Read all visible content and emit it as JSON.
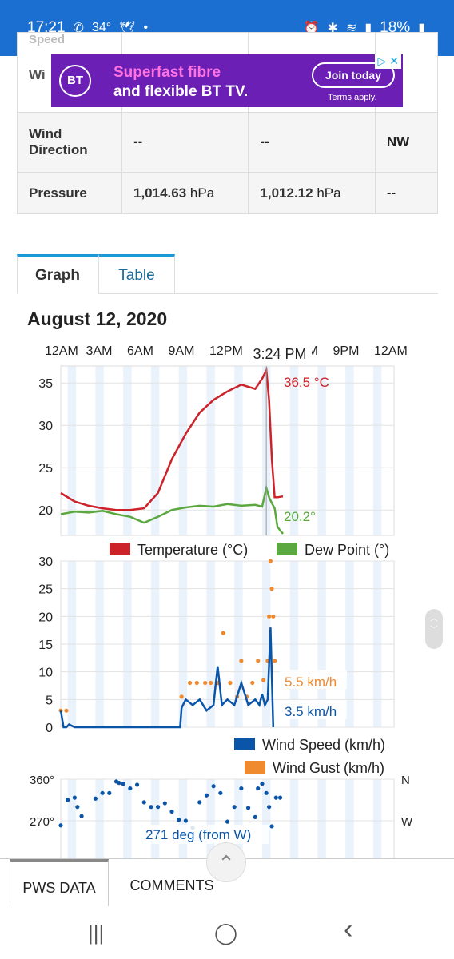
{
  "status": {
    "time": "17:21",
    "temp": "34°",
    "battery": "18%"
  },
  "ad": {
    "logo": "BT",
    "line1": "Superfast fibre",
    "line2": "and flexible BT TV.",
    "button": "Join today",
    "terms": "Terms apply."
  },
  "table": {
    "cut_label_top": "Speed",
    "cut_label": "Wi",
    "rows": [
      {
        "label": "Wind Direction",
        "v1": "--",
        "v2": "--",
        "v3": "NW"
      },
      {
        "label": "Pressure",
        "v1": "1,014.63",
        "u1": " hPa",
        "v2": "1,012.12",
        "u2": " hPa",
        "v3": "--"
      }
    ]
  },
  "tabs": {
    "graph": "Graph",
    "table": "Table"
  },
  "date": "August 12, 2020",
  "chart_data": [
    {
      "type": "line",
      "x_ticks": [
        "12AM",
        "3AM",
        "6AM",
        "9AM",
        "12PM",
        "3PM",
        "6PM",
        "9PM",
        "12AM"
      ],
      "tooltip_time": "3:24 PM",
      "yticks": [
        20,
        25,
        30,
        35
      ],
      "ylim": [
        17,
        37
      ],
      "series": [
        {
          "name": "Temperature (°C)",
          "color": "#cc2229",
          "label": "36.5 °C",
          "x": [
            0,
            1,
            2,
            3,
            4,
            5,
            6,
            7,
            8,
            9,
            10,
            11,
            12,
            13,
            14,
            14.5,
            14.8,
            15,
            15.2,
            15.4,
            15.6,
            16.0
          ],
          "y": [
            22,
            21,
            20.5,
            20.2,
            20,
            20,
            20.2,
            22,
            26,
            29,
            31.5,
            33,
            34,
            34.8,
            34.3,
            35.5,
            36.5,
            33,
            26,
            21.5,
            21.5,
            21.6
          ]
        },
        {
          "name": "Dew Point (°)",
          "color": "#5aa83f",
          "label": "20.2°",
          "x": [
            0,
            1,
            2,
            3,
            4,
            5,
            6,
            7,
            8,
            9,
            10,
            11,
            12,
            13,
            14,
            14.5,
            14.8,
            15,
            15.2,
            15.4,
            15.6,
            16.0
          ],
          "y": [
            19.5,
            19.8,
            19.7,
            19.9,
            19.5,
            19.2,
            18.5,
            19.2,
            20,
            20.3,
            20.5,
            20.4,
            20.7,
            20.5,
            20.6,
            20.4,
            22.6,
            21.5,
            20.8,
            20.2,
            18.0,
            17.2
          ]
        }
      ]
    },
    {
      "type": "line",
      "yticks": [
        0,
        5,
        10,
        15,
        20,
        25,
        30
      ],
      "ylim": [
        0,
        30
      ],
      "series": [
        {
          "name": "Wind Speed (km/h)",
          "color": "#0b55a8",
          "label": "3.5 km/h",
          "x": [
            0,
            0.2,
            0.4,
            0.6,
            1,
            3,
            6,
            8.6,
            8.7,
            9,
            9.5,
            10,
            10.5,
            11,
            11.3,
            11.6,
            12,
            12.5,
            13,
            13.5,
            14,
            14.3,
            14.5,
            14.7,
            14.9,
            15.1,
            15.3
          ],
          "y": [
            3,
            0,
            0,
            0.5,
            0,
            0,
            0,
            0,
            3.5,
            5,
            4,
            5,
            3,
            4,
            11,
            4,
            5,
            4,
            8,
            4,
            5,
            4,
            6,
            4,
            5,
            18,
            0
          ]
        },
        {
          "name": "Wind Gust (km/h)",
          "color": "#f08a2e",
          "label": "5.5 km/h",
          "x": [
            0,
            0.4,
            8.7,
            9.3,
            9.8,
            10.4,
            10.8,
            11.3,
            11.7,
            12.2,
            12.7,
            13.0,
            13.4,
            13.8,
            14.2,
            14.6,
            14.9,
            15.0,
            15.1,
            15.2,
            15.3,
            15.4
          ],
          "y": [
            3,
            3,
            5.5,
            8,
            8,
            8,
            8,
            8,
            17,
            8,
            5.5,
            12,
            5.5,
            8,
            12,
            8.5,
            12,
            20,
            30,
            25,
            20,
            12
          ]
        }
      ]
    },
    {
      "type": "scatter",
      "yticks": [
        "360°",
        "270°"
      ],
      "right_labels": [
        "N",
        "W"
      ],
      "label": "271 deg (from W)",
      "x": [
        0,
        0.5,
        1,
        1.2,
        1.5,
        2.5,
        3,
        3.5,
        4,
        4.2,
        4.5,
        5,
        5.5,
        6,
        6.5,
        7,
        7.5,
        8,
        8.5,
        9,
        9.5,
        10,
        10.5,
        11,
        11.5,
        12,
        12.5,
        13,
        13.5,
        14,
        14.2,
        14.5,
        14.8,
        15,
        15.2,
        15.5,
        15.8
      ],
      "y": [
        260,
        315,
        320,
        300,
        280,
        318,
        330,
        330,
        355,
        352,
        350,
        340,
        348,
        310,
        300,
        300,
        308,
        290,
        272,
        270,
        255,
        310,
        325,
        345,
        330,
        268,
        300,
        340,
        298,
        278,
        340,
        350,
        330,
        300,
        258,
        320,
        320
      ]
    }
  ],
  "bottom_tabs": {
    "tab1": "PWS DATA",
    "tab2": "COMMENTS"
  },
  "system_nav": {
    "recent": "|||",
    "home": "◯",
    "back": "‹"
  }
}
